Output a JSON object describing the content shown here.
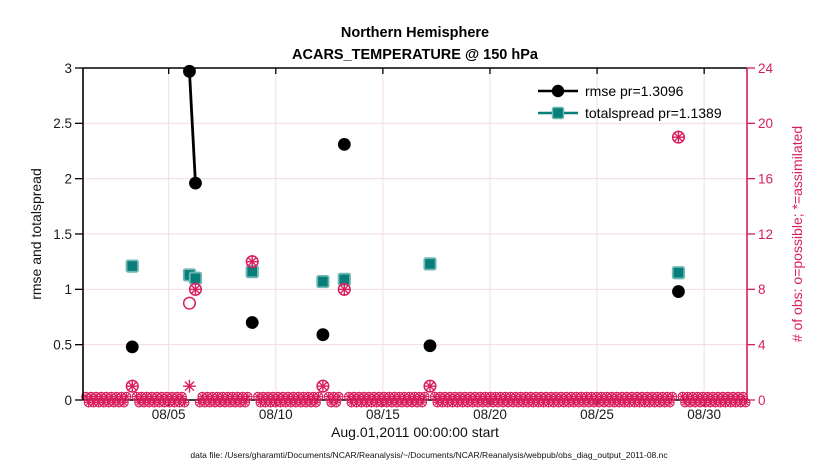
{
  "figure": {
    "caption": "data file: /Users/gharamti/Documents/NCAR/Reanalysis/~/Documents/NCAR/Reanalysis/webpub/obs_diag_output_2011-08.nc"
  },
  "colors": {
    "pink": "#D81E5E",
    "grid": "#F5DBE3",
    "teal": "#077E7A",
    "teal_edge": "#6FB8B4",
    "black": "#000000",
    "tick_text": "#1a1a1a"
  },
  "chart_data": {
    "type": "scatter",
    "title": "Northern Hemisphere",
    "subtitle": "ACARS_TEMPERATURE @ 150 hPa",
    "xlabel": "Aug.01,2011 00:00:00 start",
    "x_axis": {
      "range_days": [
        1,
        32
      ],
      "ticks": [
        5,
        10,
        15,
        20,
        25,
        30
      ],
      "tick_labels": [
        "08/05",
        "08/10",
        "08/15",
        "08/20",
        "08/25",
        "08/30"
      ]
    },
    "y_left": {
      "label": "rmse and totalspread",
      "range": [
        0,
        3
      ],
      "ticks": [
        0,
        0.5,
        1,
        1.5,
        2,
        2.5,
        3
      ],
      "tick_labels": [
        "0",
        "0.5",
        "1",
        "1.5",
        "2",
        "2.5",
        "3"
      ],
      "grid": true
    },
    "y_right": {
      "label": "# of obs: o=possible; *=assimilated",
      "range": [
        0,
        24
      ],
      "ticks": [
        0,
        4,
        8,
        12,
        16,
        20,
        24
      ],
      "tick_labels": [
        "0",
        "4",
        "8",
        "12",
        "16",
        "20",
        "24"
      ]
    },
    "legend": [
      {
        "label": "rmse pr=1.3096",
        "marker": "filled-circle",
        "color_key": "black"
      },
      {
        "label": "totalspread pr=1.1389",
        "marker": "filled-square",
        "color_key": "teal"
      }
    ],
    "points_x_day": [
      3.3,
      5.97,
      6.25,
      8.9,
      12.2,
      13.2,
      17.2,
      28.8
    ],
    "series": [
      {
        "name": "rmse",
        "axis": "left",
        "marker": "filled-circle",
        "values": [
          0.48,
          2.97,
          1.96,
          0.7,
          0.59,
          2.31,
          0.49,
          0.98
        ],
        "connected_pairs": [
          [
            1,
            2
          ]
        ]
      },
      {
        "name": "totalspread",
        "axis": "left",
        "marker": "filled-square",
        "values": [
          1.21,
          1.13,
          1.1,
          1.16,
          1.07,
          1.09,
          1.23,
          1.15
        ],
        "connected_pairs": [
          [
            1,
            2
          ]
        ]
      },
      {
        "name": "obs_possible",
        "axis": "right",
        "marker": "open-circle",
        "values": [
          1,
          7,
          8,
          10,
          1,
          8,
          1,
          19
        ]
      },
      {
        "name": "obs_assimilated",
        "axis": "right",
        "marker": "asterisk",
        "values": [
          1,
          1,
          8,
          10,
          1,
          8,
          1,
          19
        ]
      }
    ],
    "zero_obs_band": {
      "x_day_start": 1.14,
      "x_day_end": 31.95,
      "value": 0
    }
  }
}
